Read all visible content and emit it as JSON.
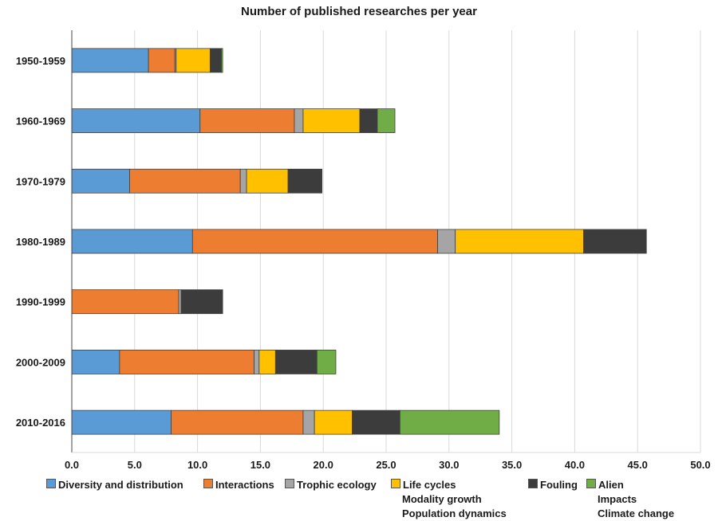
{
  "chart_data": {
    "type": "bar",
    "orientation": "horizontal",
    "stacked": true,
    "title": "Number of published researches per year",
    "categories": [
      "1950-1959",
      "1960-1969",
      "1970-1979",
      "1980-1989",
      "1990-1999",
      "2000-2009",
      "2010-2016"
    ],
    "xlim": [
      0,
      50
    ],
    "xticks": [
      "0.0",
      "5.0",
      "10.0",
      "15.0",
      "20.0",
      "25.0",
      "30.0",
      "35.0",
      "40.0",
      "45.0",
      "50.0"
    ],
    "grid": true,
    "legend_position": "bottom",
    "series": [
      {
        "name": "Diversity and distribution",
        "color": "#5B9BD5",
        "values": [
          6.1,
          10.2,
          4.6,
          9.6,
          0,
          3.8,
          7.9
        ]
      },
      {
        "name": "Interactions",
        "color": "#ED7D31",
        "values": [
          2.1,
          7.5,
          8.8,
          19.5,
          8.5,
          10.7,
          10.5
        ]
      },
      {
        "name": "Trophic ecology",
        "color": "#A5A5A5",
        "values": [
          0.1,
          0.7,
          0.5,
          1.4,
          0.2,
          0.4,
          0.9
        ]
      },
      {
        "name": "Life cycles\nModality growth\nPopulation dynamics",
        "color": "#FFC000",
        "values": [
          2.7,
          4.5,
          3.3,
          10.2,
          0,
          1.3,
          3.0
        ]
      },
      {
        "name": "Fouling",
        "color": "#3C3C3C",
        "values": [
          0.9,
          1.4,
          2.7,
          5.0,
          3.3,
          3.3,
          3.8
        ]
      },
      {
        "name": "Alien\nImpacts\nClimate change",
        "color": "#70AD47",
        "values": [
          0.1,
          1.4,
          0,
          0,
          0,
          1.5,
          7.9
        ]
      }
    ]
  },
  "legend_items": [
    {
      "lines": [
        "Diversity and distribution"
      ],
      "color": "#5B9BD5"
    },
    {
      "lines": [
        "Interactions"
      ],
      "color": "#ED7D31"
    },
    {
      "lines": [
        "Trophic ecology"
      ],
      "color": "#A5A5A5"
    },
    {
      "lines": [
        "Life cycles",
        "Modality growth",
        "Population dynamics"
      ],
      "color": "#FFC000"
    },
    {
      "lines": [
        "Fouling"
      ],
      "color": "#3C3C3C"
    },
    {
      "lines": [
        "Alien",
        "Impacts",
        "Climate change"
      ],
      "color": "#70AD47"
    }
  ]
}
